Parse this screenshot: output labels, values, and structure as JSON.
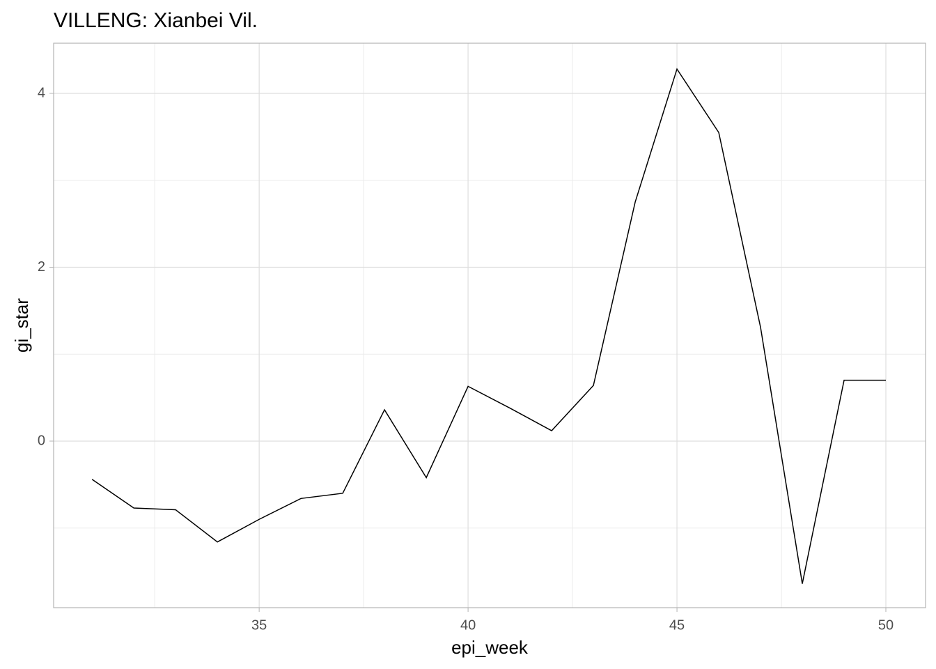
{
  "chart_data": {
    "type": "line",
    "title": "VILLENG: Xianbei Vil.",
    "x_label": "epi_week",
    "y_label": "gi_star",
    "x": [
      31,
      32,
      33,
      34,
      35,
      36,
      37,
      38,
      39,
      40,
      41,
      42,
      43,
      44,
      45,
      46,
      47,
      48,
      49,
      50
    ],
    "series": [
      {
        "color": "#000000",
        "values": [
          -0.44,
          -0.77,
          -0.79,
          -1.16,
          -0.9,
          -0.66,
          -0.6,
          0.36,
          -0.42,
          0.63,
          0.38,
          0.12,
          0.64,
          2.75,
          4.28,
          3.55,
          1.31,
          -1.64,
          0.7,
          0.7
        ]
      }
    ],
    "xlim": [
      30.08,
      50.95
    ],
    "xticks": [
      35,
      40,
      45,
      50
    ],
    "xminor": [
      32.5,
      37.5,
      42.5,
      47.5
    ],
    "ylim": [
      -1.916,
      4.577
    ],
    "yticks": [
      0,
      2,
      4
    ],
    "yminor": [
      -1,
      1,
      3
    ],
    "grid": true
  }
}
